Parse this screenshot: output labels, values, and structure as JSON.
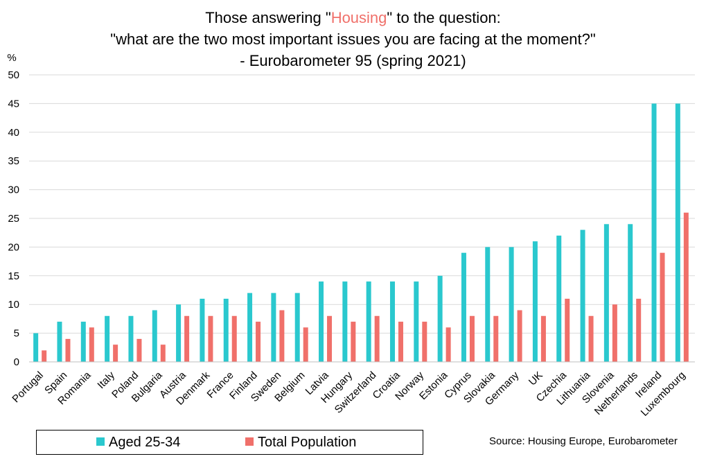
{
  "title": {
    "line1_before": "Those answering \"",
    "line1_highlight": "Housing",
    "line1_after": "\" to the question:",
    "line2": "\"what are the two most important issues you are facing at the moment?\"",
    "line3": "- Eurobarometer 95 (spring 2021)"
  },
  "colors": {
    "aged": "#2ac8ce",
    "total": "#f0706a",
    "grid": "#d9d9d9",
    "highlight": "#f0706a"
  },
  "legend": {
    "aged_label": "Aged 25-34",
    "total_label": "Total Population"
  },
  "source": "Source: Housing Europe, Eurobarometer",
  "chart_data": {
    "type": "bar",
    "title": "Those answering \"Housing\" to the question: \"what are the two most important issues you are facing at the moment?\" - Eurobarometer 95 (spring 2021)",
    "ylabel": "%",
    "ylim": [
      0,
      50
    ],
    "yticks": [
      0,
      5,
      10,
      15,
      20,
      25,
      30,
      35,
      40,
      45,
      50
    ],
    "grid": true,
    "legend_position": "bottom-left",
    "categories": [
      "Portugal",
      "Spain",
      "Romania",
      "Italy",
      "Poland",
      "Bulgaria",
      "Austria",
      "Denmark",
      "France",
      "Finland",
      "Sweden",
      "Belgium",
      "Latvia",
      "Hungary",
      "Switzerland",
      "Croatia",
      "Norway",
      "Estonia",
      "Cyprus",
      "Slovakia",
      "Germany",
      "UK",
      "Czechia",
      "Lithuania",
      "Slovenia",
      "Netherlands",
      "Ireland",
      "Luxembourg"
    ],
    "series": [
      {
        "name": "Aged 25-34",
        "values": [
          5,
          7,
          7,
          8,
          8,
          9,
          10,
          11,
          11,
          12,
          12,
          12,
          14,
          14,
          14,
          14,
          14,
          15,
          19,
          20,
          20,
          21,
          22,
          23,
          24,
          24,
          45,
          45
        ]
      },
      {
        "name": "Total Population",
        "values": [
          2,
          4,
          6,
          3,
          4,
          3,
          8,
          8,
          8,
          7,
          9,
          6,
          8,
          7,
          8,
          7,
          7,
          6,
          8,
          8,
          9,
          8,
          11,
          8,
          10,
          11,
          19,
          26
        ]
      }
    ]
  }
}
